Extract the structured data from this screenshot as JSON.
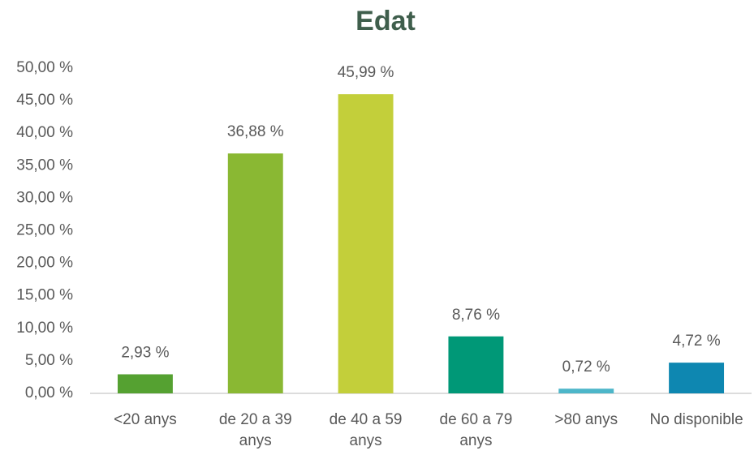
{
  "chart_data": {
    "type": "bar",
    "title": "Edat",
    "categories": [
      "<20 anys",
      "de 20 a 39 anys",
      "de 40 a 59 anys",
      "de 60 a 79 anys",
      ">80 anys",
      "No disponible"
    ],
    "values": [
      2.93,
      36.88,
      45.99,
      8.76,
      0.72,
      4.72
    ],
    "value_labels": [
      "2,93 %",
      "36,88 %",
      "45,99 %",
      "8,76 %",
      "0,72 %",
      "4,72 %"
    ],
    "colors": [
      "#55a131",
      "#8ab833",
      "#c3cf3a",
      "#009877",
      "#4db6c9",
      "#0e87b1"
    ],
    "ylim": [
      0,
      50
    ],
    "yticks": [
      {
        "value": 0,
        "label": "0,00 %"
      },
      {
        "value": 5,
        "label": "5,00 %"
      },
      {
        "value": 10,
        "label": "10,00 %"
      },
      {
        "value": 15,
        "label": "15,00 %"
      },
      {
        "value": 20,
        "label": "20,00 %"
      },
      {
        "value": 25,
        "label": "25,00 %"
      },
      {
        "value": 30,
        "label": "30,00 %"
      },
      {
        "value": 35,
        "label": "35,00 %"
      },
      {
        "value": 40,
        "label": "40,00 %"
      },
      {
        "value": 45,
        "label": "45,00 %"
      },
      {
        "value": 50,
        "label": "50,00 %"
      }
    ],
    "grid": false
  }
}
